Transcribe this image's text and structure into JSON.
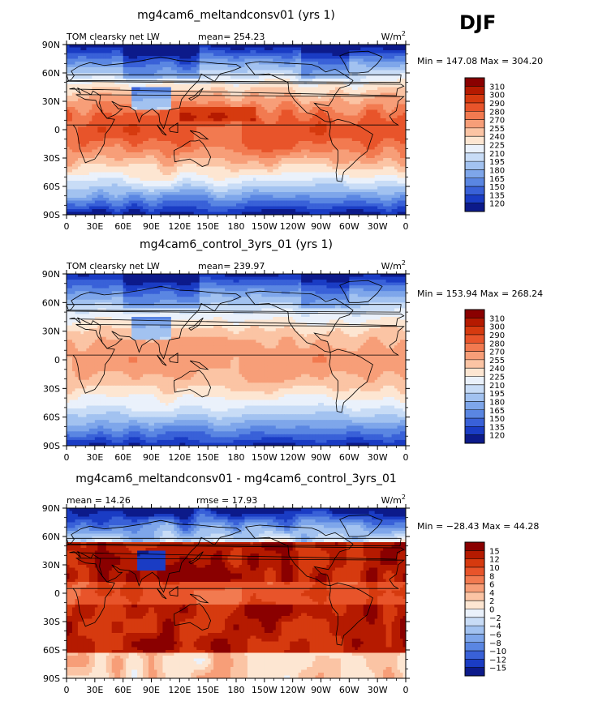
{
  "season": "DJF",
  "chart_data": [
    {
      "type": "heatmap",
      "title": "mg4cam6_meltandconsv01 (yrs 1)",
      "variable": "TOM clearsky net LW",
      "units": "W/m",
      "units_sup": "2",
      "stats": [
        {
          "label": "mean=",
          "value": "254.23"
        }
      ],
      "min_label": "Min = ",
      "min_value": "147.08",
      "max_label": " Max = ",
      "max_value": "304.20",
      "colorbar": {
        "levels": [
          "310",
          "300",
          "290",
          "280",
          "270",
          "255",
          "240",
          "225",
          "210",
          "195",
          "180",
          "165",
          "150",
          "135",
          "120"
        ],
        "colors": [
          "#8a0000",
          "#b51a00",
          "#d63a0f",
          "#e8542a",
          "#f27a50",
          "#f79e78",
          "#fbc4a4",
          "#fde6d2",
          "#eaf1fb",
          "#c8dcf6",
          "#a2c2f0",
          "#7ea6ea",
          "#5a86e2",
          "#3961d8",
          "#1a3cc4",
          "#0c1a8a"
        ]
      },
      "map_kind": "base",
      "xtick_labels": [
        "0",
        "30E",
        "60E",
        "90E",
        "120E",
        "150E",
        "180",
        "150W",
        "120W",
        "90W",
        "60W",
        "30W",
        "0"
      ],
      "ytick_labels": [
        "90N",
        "60N",
        "30N",
        "0",
        "30S",
        "60S",
        "90S"
      ],
      "xlim": [
        0,
        360
      ],
      "ylim": [
        -90,
        90
      ]
    },
    {
      "type": "heatmap",
      "title": "mg4cam6_control_3yrs_01 (yrs 1)",
      "variable": "TOM clearsky net LW",
      "units": "W/m",
      "units_sup": "2",
      "stats": [
        {
          "label": "mean=",
          "value": "239.97"
        }
      ],
      "min_label": "Min = ",
      "min_value": "153.94",
      "max_label": " Max = ",
      "max_value": "268.24",
      "colorbar": {
        "levels": [
          "310",
          "300",
          "290",
          "280",
          "270",
          "255",
          "240",
          "225",
          "210",
          "195",
          "180",
          "165",
          "150",
          "135",
          "120"
        ],
        "colors": [
          "#8a0000",
          "#b51a00",
          "#d63a0f",
          "#e8542a",
          "#f27a50",
          "#f79e78",
          "#fbc4a4",
          "#fde6d2",
          "#eaf1fb",
          "#c8dcf6",
          "#a2c2f0",
          "#7ea6ea",
          "#5a86e2",
          "#3961d8",
          "#1a3cc4",
          "#0c1a8a"
        ]
      },
      "map_kind": "control",
      "xtick_labels": [
        "0",
        "30E",
        "60E",
        "90E",
        "120E",
        "150E",
        "180",
        "150W",
        "120W",
        "90W",
        "60W",
        "30W",
        "0"
      ],
      "ytick_labels": [
        "90N",
        "60N",
        "30N",
        "0",
        "30S",
        "60S",
        "90S"
      ],
      "xlim": [
        0,
        360
      ],
      "ylim": [
        -90,
        90
      ]
    },
    {
      "type": "heatmap",
      "title": "mg4cam6_meltandconsv01 - mg4cam6_control_3yrs_01",
      "variable": "",
      "units": "W/m",
      "units_sup": "2",
      "stats": [
        {
          "label": "mean =",
          "value": "14.26"
        },
        {
          "label": "rmse =",
          "value": "17.93"
        }
      ],
      "min_label": "Min = ",
      "min_value": "−28.43",
      "max_label": " Max = ",
      "max_value": "44.28",
      "colorbar": {
        "levels": [
          "15",
          "12",
          "10",
          "8",
          "6",
          "4",
          "2",
          "0",
          "−2",
          "−4",
          "−6",
          "−8",
          "−10",
          "−12",
          "−15"
        ],
        "colors": [
          "#8a0000",
          "#b51a00",
          "#d63a0f",
          "#e8542a",
          "#f27a50",
          "#f79e78",
          "#fbc4a4",
          "#fde6d2",
          "#eaf1fb",
          "#c8dcf6",
          "#a2c2f0",
          "#7ea6ea",
          "#5a86e2",
          "#3961d8",
          "#1a3cc4",
          "#0c1a8a"
        ]
      },
      "map_kind": "diff",
      "xtick_labels": [
        "0",
        "30E",
        "60E",
        "90E",
        "120E",
        "150E",
        "180",
        "150W",
        "120W",
        "90W",
        "60W",
        "30W",
        "0"
      ],
      "ytick_labels": [
        "90N",
        "60N",
        "30N",
        "0",
        "30S",
        "60S",
        "90S"
      ],
      "xlim": [
        0,
        360
      ],
      "ylim": [
        -90,
        90
      ]
    }
  ]
}
